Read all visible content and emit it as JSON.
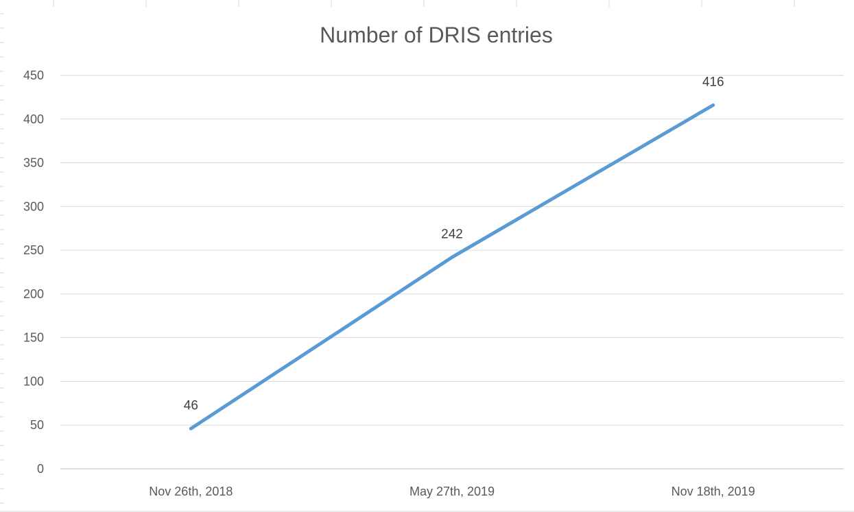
{
  "chart_data": {
    "type": "line",
    "title": "Number of DRIS entries",
    "xlabel": "",
    "ylabel": "",
    "categories": [
      "Nov 26th, 2018",
      "May 27th, 2019",
      "Nov 18th, 2019"
    ],
    "series": [
      {
        "values": [
          46,
          242,
          416
        ],
        "color": "#5b9bd5"
      }
    ],
    "data_labels": [
      "46",
      "242",
      "416"
    ],
    "ylim": [
      0,
      450
    ],
    "yticks": [
      "0",
      "50",
      "100",
      "150",
      "200",
      "250",
      "300",
      "350",
      "400",
      "450"
    ],
    "grid": true,
    "legend": "none"
  }
}
